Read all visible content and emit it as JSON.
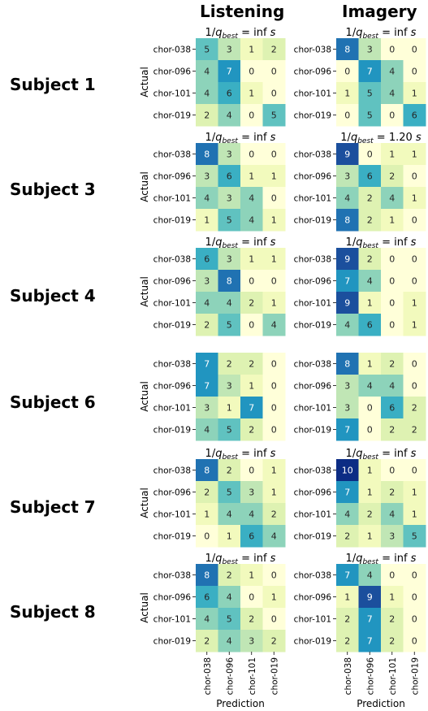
{
  "column_titles": [
    "Listening",
    "Imagery"
  ],
  "axis_label_y": "Actual",
  "axis_label_x": "Prediction",
  "class_labels": [
    "chor-038",
    "chor-096",
    "chor-101",
    "chor-019"
  ],
  "colormap": "YlGnBu",
  "colormap_stops": [
    "#ffffd9",
    "#edf8b1",
    "#c7e9b4",
    "#7fcdbb",
    "#41b6c4",
    "#1d91c0",
    "#225ea8",
    "#0c2c84"
  ],
  "chart_data": [
    {
      "type": "heatmap",
      "subject": "Subject 1",
      "condition": "Listening",
      "title": "1/q_best = inf s",
      "title_value": "inf",
      "x_categories": [
        "chor-038",
        "chor-096",
        "chor-101",
        "chor-019"
      ],
      "y_categories": [
        "chor-038",
        "chor-096",
        "chor-101",
        "chor-019"
      ],
      "values": [
        [
          5,
          3,
          1,
          2
        ],
        [
          4,
          7,
          0,
          0
        ],
        [
          4,
          6,
          1,
          0
        ],
        [
          2,
          4,
          0,
          5
        ]
      ]
    },
    {
      "type": "heatmap",
      "subject": "Subject 1",
      "condition": "Imagery",
      "title": "1/q_best = inf s",
      "title_value": "inf",
      "x_categories": [
        "chor-038",
        "chor-096",
        "chor-101",
        "chor-019"
      ],
      "y_categories": [
        "chor-038",
        "chor-096",
        "chor-101",
        "chor-019"
      ],
      "values": [
        [
          8,
          3,
          0,
          0
        ],
        [
          0,
          7,
          4,
          0
        ],
        [
          1,
          5,
          4,
          1
        ],
        [
          0,
          5,
          0,
          6
        ]
      ]
    },
    {
      "type": "heatmap",
      "subject": "Subject 3",
      "condition": "Listening",
      "title": "1/q_best = inf s",
      "title_value": "inf",
      "x_categories": [
        "chor-038",
        "chor-096",
        "chor-101",
        "chor-019"
      ],
      "y_categories": [
        "chor-038",
        "chor-096",
        "chor-101",
        "chor-019"
      ],
      "values": [
        [
          8,
          3,
          0,
          0
        ],
        [
          3,
          6,
          1,
          1
        ],
        [
          4,
          3,
          4,
          0
        ],
        [
          1,
          5,
          4,
          1
        ]
      ]
    },
    {
      "type": "heatmap",
      "subject": "Subject 3",
      "condition": "Imagery",
      "title": "1/q_best = 1.20 s",
      "title_value": "1.20",
      "x_categories": [
        "chor-038",
        "chor-096",
        "chor-101",
        "chor-019"
      ],
      "y_categories": [
        "chor-038",
        "chor-096",
        "chor-101",
        "chor-019"
      ],
      "values": [
        [
          9,
          0,
          1,
          1
        ],
        [
          3,
          6,
          2,
          0
        ],
        [
          4,
          2,
          4,
          1
        ],
        [
          8,
          2,
          1,
          0
        ]
      ]
    },
    {
      "type": "heatmap",
      "subject": "Subject 4",
      "condition": "Listening",
      "title": "1/q_best = inf s",
      "title_value": "inf",
      "x_categories": [
        "chor-038",
        "chor-096",
        "chor-101",
        "chor-019"
      ],
      "y_categories": [
        "chor-038",
        "chor-096",
        "chor-101",
        "chor-019"
      ],
      "values": [
        [
          6,
          3,
          1,
          1
        ],
        [
          3,
          8,
          0,
          0
        ],
        [
          4,
          4,
          2,
          1
        ],
        [
          2,
          5,
          0,
          4
        ]
      ]
    },
    {
      "type": "heatmap",
      "subject": "Subject 4",
      "condition": "Imagery",
      "title": "1/q_best = inf s",
      "title_value": "inf",
      "x_categories": [
        "chor-038",
        "chor-096",
        "chor-101",
        "chor-019"
      ],
      "y_categories": [
        "chor-038",
        "chor-096",
        "chor-101",
        "chor-019"
      ],
      "values": [
        [
          9,
          2,
          0,
          0
        ],
        [
          7,
          4,
          0,
          0
        ],
        [
          9,
          1,
          0,
          1
        ],
        [
          4,
          6,
          0,
          1
        ]
      ]
    },
    {
      "type": "heatmap",
      "subject": "Subject 6",
      "condition": "Listening",
      "title": "",
      "title_value": "",
      "x_categories": [
        "chor-038",
        "chor-096",
        "chor-101",
        "chor-019"
      ],
      "y_categories": [
        "chor-038",
        "chor-096",
        "chor-101",
        "chor-019"
      ],
      "values": [
        [
          7,
          2,
          2,
          0
        ],
        [
          7,
          3,
          1,
          0
        ],
        [
          3,
          1,
          7,
          0
        ],
        [
          4,
          5,
          2,
          0
        ]
      ]
    },
    {
      "type": "heatmap",
      "subject": "Subject 6",
      "condition": "Imagery",
      "title": "",
      "title_value": "",
      "x_categories": [
        "chor-038",
        "chor-096",
        "chor-101",
        "chor-019"
      ],
      "y_categories": [
        "chor-038",
        "chor-096",
        "chor-101",
        "chor-019"
      ],
      "values": [
        [
          8,
          1,
          2,
          0
        ],
        [
          3,
          4,
          4,
          0
        ],
        [
          3,
          0,
          6,
          2
        ],
        [
          7,
          0,
          2,
          2
        ]
      ]
    },
    {
      "type": "heatmap",
      "subject": "Subject 7",
      "condition": "Listening",
      "title": "1/q_best = inf s",
      "title_value": "inf",
      "x_categories": [
        "chor-038",
        "chor-096",
        "chor-101",
        "chor-019"
      ],
      "y_categories": [
        "chor-038",
        "chor-096",
        "chor-101",
        "chor-019"
      ],
      "values": [
        [
          8,
          2,
          0,
          1
        ],
        [
          2,
          5,
          3,
          1
        ],
        [
          1,
          4,
          4,
          2
        ],
        [
          0,
          1,
          6,
          4
        ]
      ]
    },
    {
      "type": "heatmap",
      "subject": "Subject 7",
      "condition": "Imagery",
      "title": "1/q_best = inf s",
      "title_value": "inf",
      "x_categories": [
        "chor-038",
        "chor-096",
        "chor-101",
        "chor-019"
      ],
      "y_categories": [
        "chor-038",
        "chor-096",
        "chor-101",
        "chor-019"
      ],
      "values": [
        [
          10,
          1,
          0,
          0
        ],
        [
          7,
          1,
          2,
          1
        ],
        [
          4,
          2,
          4,
          1
        ],
        [
          2,
          1,
          3,
          5
        ]
      ]
    },
    {
      "type": "heatmap",
      "subject": "Subject 8",
      "condition": "Listening",
      "title": "1/q_best = inf s",
      "title_value": "inf",
      "x_categories": [
        "chor-038",
        "chor-096",
        "chor-101",
        "chor-019"
      ],
      "y_categories": [
        "chor-038",
        "chor-096",
        "chor-101",
        "chor-019"
      ],
      "values": [
        [
          8,
          2,
          1,
          0
        ],
        [
          6,
          4,
          0,
          1
        ],
        [
          4,
          5,
          2,
          0
        ],
        [
          2,
          4,
          3,
          2
        ]
      ]
    },
    {
      "type": "heatmap",
      "subject": "Subject 8",
      "condition": "Imagery",
      "title": "1/q_best = inf s",
      "title_value": "inf",
      "x_categories": [
        "chor-038",
        "chor-096",
        "chor-101",
        "chor-019"
      ],
      "y_categories": [
        "chor-038",
        "chor-096",
        "chor-101",
        "chor-019"
      ],
      "values": [
        [
          7,
          4,
          0,
          0
        ],
        [
          1,
          9,
          1,
          0
        ],
        [
          2,
          7,
          2,
          0
        ],
        [
          2,
          7,
          2,
          0
        ]
      ]
    }
  ],
  "subjects": [
    "Subject 1",
    "Subject 3",
    "Subject 4",
    "Subject 6",
    "Subject 7",
    "Subject 8"
  ]
}
